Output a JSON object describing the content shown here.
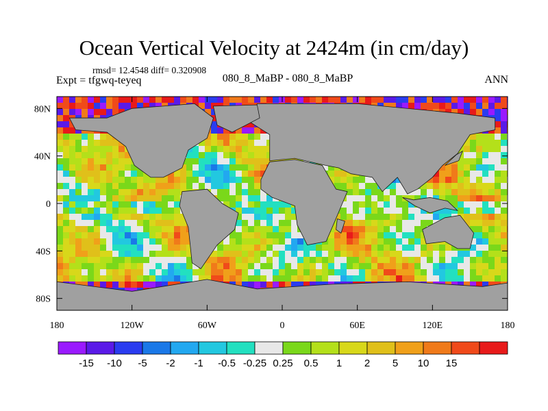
{
  "title": "Ocean Vertical Velocity at 2424m (in cm/day)",
  "stats": "rmsd= 12.4548 diff= 0.320908",
  "expt": "Expt = tfgwq-teyeq",
  "center_label": "080_8_MaBP - 080_8_MaBP",
  "season": "ANN",
  "map": {
    "lon_range": [
      -180,
      180
    ],
    "lat_range": [
      -90,
      90
    ],
    "land_color": "#a0a0a0",
    "lon_ticks": [
      {
        "value": -180,
        "label": "180"
      },
      {
        "value": -120,
        "label": "120W"
      },
      {
        "value": -60,
        "label": "60W"
      },
      {
        "value": 0,
        "label": "0"
      },
      {
        "value": 60,
        "label": "60E"
      },
      {
        "value": 120,
        "label": "120E"
      },
      {
        "value": 180,
        "label": "180"
      }
    ],
    "lat_ticks": [
      {
        "value": 80,
        "label": "80N"
      },
      {
        "value": 40,
        "label": "40N"
      },
      {
        "value": 0,
        "label": "0"
      },
      {
        "value": -40,
        "label": "40S"
      },
      {
        "value": -80,
        "label": "80S"
      }
    ]
  },
  "colorbar": {
    "colors": [
      "#9a1aff",
      "#5a1ae8",
      "#2a3cf0",
      "#1a78e8",
      "#22a8f0",
      "#22c8e0",
      "#22e0c0",
      "#e8e8e8",
      "#7ad81a",
      "#b4e01a",
      "#d8d81a",
      "#e0c01a",
      "#f0a01a",
      "#f07a1a",
      "#f04a1a",
      "#e81a1a"
    ],
    "labels": [
      "-15",
      "-10",
      "-5",
      "-2",
      "-1",
      "-0.5",
      "-0.25",
      "0.25",
      "0.5",
      "1",
      "2",
      "5",
      "10",
      "15"
    ]
  }
}
